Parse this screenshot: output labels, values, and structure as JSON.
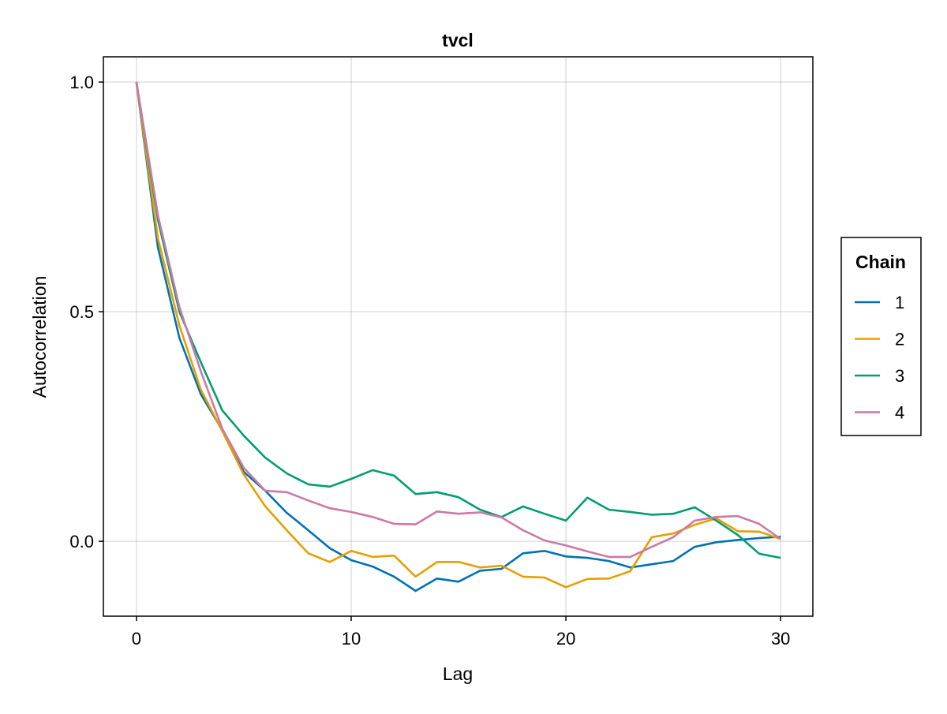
{
  "chart_data": {
    "type": "line",
    "title": "tvcl",
    "xlabel": "Lag",
    "ylabel": "Autocorrelation",
    "xlim": [
      -1.54,
      31.5
    ],
    "ylim": [
      -0.163,
      1.055
    ],
    "xticks": [
      0,
      10,
      20,
      30
    ],
    "xtick_labels": [
      "0",
      "10",
      "20",
      "30"
    ],
    "yticks": [
      0.0,
      0.5,
      1.0
    ],
    "ytick_labels": [
      "0.0",
      "0.5",
      "1.0"
    ],
    "grid": true,
    "legend": {
      "title": "Chain",
      "placement": "right"
    },
    "x": [
      0,
      1,
      2,
      3,
      4,
      5,
      6,
      7,
      8,
      9,
      10,
      11,
      12,
      13,
      14,
      15,
      16,
      17,
      18,
      19,
      20,
      21,
      22,
      23,
      24,
      25,
      26,
      27,
      28,
      29,
      30
    ],
    "series": [
      {
        "name": "1",
        "color": "#0072B2",
        "values": [
          1.0,
          0.64,
          0.443,
          0.32,
          0.242,
          0.151,
          0.11,
          0.062,
          0.024,
          -0.015,
          -0.041,
          -0.055,
          -0.077,
          -0.108,
          -0.081,
          -0.088,
          -0.064,
          -0.06,
          -0.026,
          -0.021,
          -0.033,
          -0.036,
          -0.043,
          -0.057,
          -0.05,
          -0.043,
          -0.012,
          -0.002,
          0.003,
          0.007,
          0.01
        ]
      },
      {
        "name": "2",
        "color": "#E69F00",
        "values": [
          1.0,
          0.66,
          0.47,
          0.33,
          0.24,
          0.145,
          0.076,
          0.024,
          -0.026,
          -0.045,
          -0.021,
          -0.034,
          -0.031,
          -0.077,
          -0.045,
          -0.045,
          -0.057,
          -0.053,
          -0.077,
          -0.079,
          -0.1,
          -0.082,
          -0.081,
          -0.065,
          0.009,
          0.017,
          0.036,
          0.05,
          0.022,
          0.021,
          0.005
        ]
      },
      {
        "name": "3",
        "color": "#009E73",
        "values": [
          1.0,
          0.7,
          0.5,
          0.39,
          0.285,
          0.23,
          0.182,
          0.148,
          0.124,
          0.119,
          0.136,
          0.155,
          0.143,
          0.103,
          0.107,
          0.096,
          0.069,
          0.053,
          0.076,
          0.06,
          0.045,
          0.095,
          0.069,
          0.064,
          0.058,
          0.06,
          0.074,
          0.045,
          0.014,
          -0.027,
          -0.036
        ]
      },
      {
        "name": "4",
        "color": "#CC79A7",
        "values": [
          1.0,
          0.71,
          0.51,
          0.37,
          0.245,
          0.16,
          0.11,
          0.107,
          0.089,
          0.072,
          0.064,
          0.053,
          0.038,
          0.037,
          0.065,
          0.06,
          0.063,
          0.052,
          0.024,
          0.002,
          -0.009,
          -0.022,
          -0.034,
          -0.034,
          -0.012,
          0.009,
          0.045,
          0.053,
          0.055,
          0.038,
          0.005
        ]
      }
    ]
  }
}
